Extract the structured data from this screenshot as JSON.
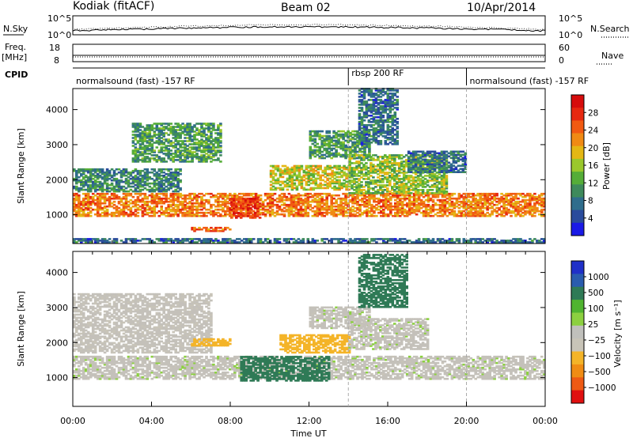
{
  "header": {
    "station": "Kodiak (fitACF)",
    "beam": "Beam 02",
    "date": "10/Apr/2014"
  },
  "sky_panel": {
    "left_label": "N.Sky",
    "right_label": "N.Search",
    "left_ticks": [
      "10^5",
      "10^0"
    ],
    "right_ticks": [
      "10^5",
      "10^0"
    ]
  },
  "freq_panel": {
    "left_label_1": "Freq.",
    "left_label_2": "[MHz]",
    "left_ticks": [
      "18",
      "8"
    ],
    "right_label": "Nave",
    "right_ticks": [
      "60",
      "0"
    ]
  },
  "cpid_panel": {
    "label": "CPID",
    "segments": [
      {
        "name": "normalsound (fast) -157 RF",
        "start_hour": 0,
        "end_hour": 14.0
      },
      {
        "name": "rbsp 200 RF",
        "start_hour": 14.0,
        "end_hour": 20.0
      },
      {
        "name": "normalsound (fast) -157 RF",
        "start_hour": 20.0,
        "end_hour": 24
      }
    ]
  },
  "colors": {
    "power": [
      "#1a1ae6",
      "#2a4b9c",
      "#2f6d8c",
      "#3e8a5c",
      "#55ad38",
      "#9ac82c",
      "#e4b714",
      "#f08a14",
      "#f15a12",
      "#e62810",
      "#d60c0c"
    ],
    "velocity": [
      "#e01010",
      "#ee5a14",
      "#f08c14",
      "#f4b428",
      "#c8c4b8",
      "#c0c0bc",
      "#8cd040",
      "#50b430",
      "#2f7a56",
      "#2a5cae",
      "#2030c8"
    ]
  },
  "chart_data": [
    {
      "type": "heatmap",
      "parameter": "power",
      "ylabel": "Slant Range [km]",
      "x_range_hours": [
        0,
        24
      ],
      "ylim": [
        180,
        4600
      ],
      "yticks": [
        "1000",
        "2000",
        "3000",
        "4000"
      ],
      "colorbar_label": "Power [dB]",
      "colorbar_ticks": [
        "4",
        "8",
        "12",
        "16",
        "20",
        "24",
        "28"
      ],
      "colorbar_range": [
        0,
        30
      ],
      "regions": [
        {
          "t": [
            0,
            24
          ],
          "r": [
            950,
            1600
          ],
          "val": 22
        },
        {
          "t": [
            0,
            5.5
          ],
          "r": [
            1650,
            2300
          ],
          "val": 8
        },
        {
          "t": [
            3,
            7.5
          ],
          "r": [
            2500,
            3600
          ],
          "val": 10
        },
        {
          "t": [
            6,
            8
          ],
          "r": [
            520,
            650
          ],
          "val": 23
        },
        {
          "t": [
            8,
            9.5
          ],
          "r": [
            900,
            1450
          ],
          "val": 27
        },
        {
          "t": [
            10,
            14
          ],
          "r": [
            1700,
            2400
          ],
          "val": 16
        },
        {
          "t": [
            12,
            15
          ],
          "r": [
            2600,
            3400
          ],
          "val": 10
        },
        {
          "t": [
            14.5,
            16.5
          ],
          "r": [
            3000,
            4600
          ],
          "val": 6
        },
        {
          "t": [
            14,
            19
          ],
          "r": [
            1600,
            2700
          ],
          "val": 14
        },
        {
          "t": [
            17,
            20
          ],
          "r": [
            2200,
            2800
          ],
          "val": 6
        },
        {
          "t": [
            0,
            24
          ],
          "r": [
            200,
            330
          ],
          "val": 6
        }
      ]
    },
    {
      "type": "heatmap",
      "parameter": "velocity",
      "ylabel": "Slant Range [km]",
      "xlabel": "Time UT",
      "x_range_hours": [
        0,
        24
      ],
      "xticks": [
        "00:00",
        "04:00",
        "08:00",
        "12:00",
        "16:00",
        "20:00",
        "00:00"
      ],
      "ylim": [
        180,
        4600
      ],
      "yticks": [
        "1000",
        "2000",
        "3000",
        "4000"
      ],
      "colorbar_label": "Velocity [m s⁻¹]",
      "colorbar_ticks": [
        "1000",
        "500",
        "100",
        "25",
        "−25",
        "−100",
        "−500",
        "−1000"
      ],
      "colorbar_range": [
        -1000,
        1000
      ],
      "regions": [
        {
          "t": [
            0,
            24
          ],
          "r": [
            950,
            1600
          ],
          "val": 0
        },
        {
          "t": [
            0,
            7
          ],
          "r": [
            1700,
            3400
          ],
          "val": -10
        },
        {
          "t": [
            6,
            8
          ],
          "r": [
            1900,
            2100
          ],
          "val": -150
        },
        {
          "t": [
            8.5,
            13
          ],
          "r": [
            900,
            1600
          ],
          "val": 150
        },
        {
          "t": [
            10.5,
            14
          ],
          "r": [
            1700,
            2200
          ],
          "val": -200
        },
        {
          "t": [
            12,
            15
          ],
          "r": [
            2400,
            3000
          ],
          "val": 0
        },
        {
          "t": [
            14.5,
            17
          ],
          "r": [
            3000,
            4500
          ],
          "val": 150
        },
        {
          "t": [
            14,
            18
          ],
          "r": [
            1800,
            2700
          ],
          "val": 0
        }
      ]
    }
  ],
  "axis": {
    "xlabel": "Time UT",
    "xticks": [
      "00:00",
      "04:00",
      "08:00",
      "12:00",
      "16:00",
      "20:00",
      "00:00"
    ]
  }
}
